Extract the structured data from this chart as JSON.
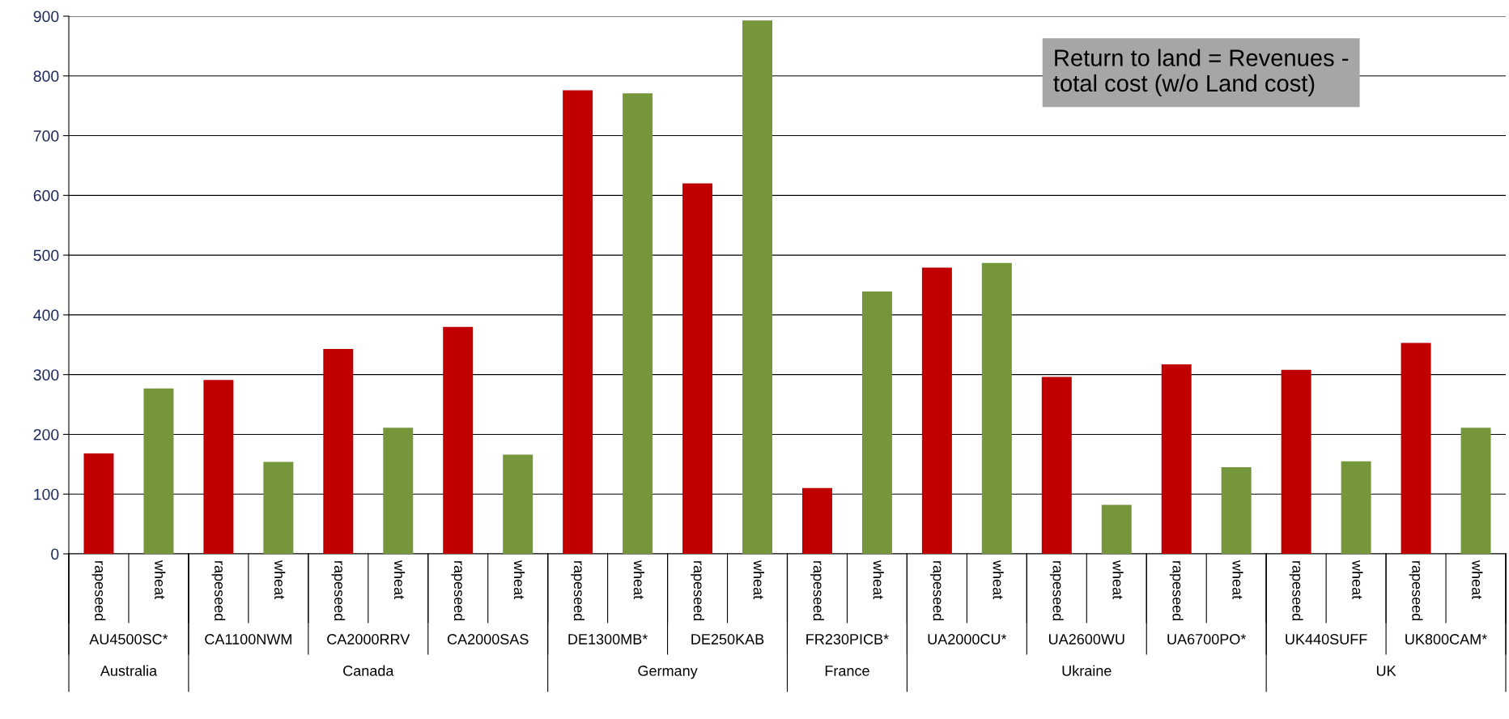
{
  "chart_data": {
    "type": "bar",
    "categories": [
      "AU4500SC*",
      "CA1100NWM",
      "CA2000RRV",
      "CA2000SAS",
      "DE1300MB*",
      "DE250KAB",
      "FR230PICB*",
      "UA2000CU*",
      "UA2600WU",
      "UA6700PO*",
      "UK440SUFF",
      "UK800CAM*"
    ],
    "series": [
      {
        "name": "rapeseed",
        "color": "#c00000",
        "values": [
          168,
          291,
          343,
          380,
          776,
          620,
          110,
          479,
          296,
          317,
          308,
          353
        ]
      },
      {
        "name": "wheat",
        "color": "#76963c",
        "values": [
          277,
          154,
          211,
          166,
          771,
          893,
          439,
          487,
          82,
          145,
          155,
          211
        ]
      }
    ],
    "ylim": [
      0,
      900
    ],
    "yticks": [
      0,
      100,
      200,
      300,
      400,
      500,
      600,
      700,
      800,
      900
    ],
    "grid": "y",
    "legend": false,
    "annotations": [
      "Return to land = Revenues -\ntotal cost (w/o Land cost)",
      "Australia",
      "Canada",
      "Germany",
      "France",
      "Ukraine",
      "UK"
    ]
  }
}
